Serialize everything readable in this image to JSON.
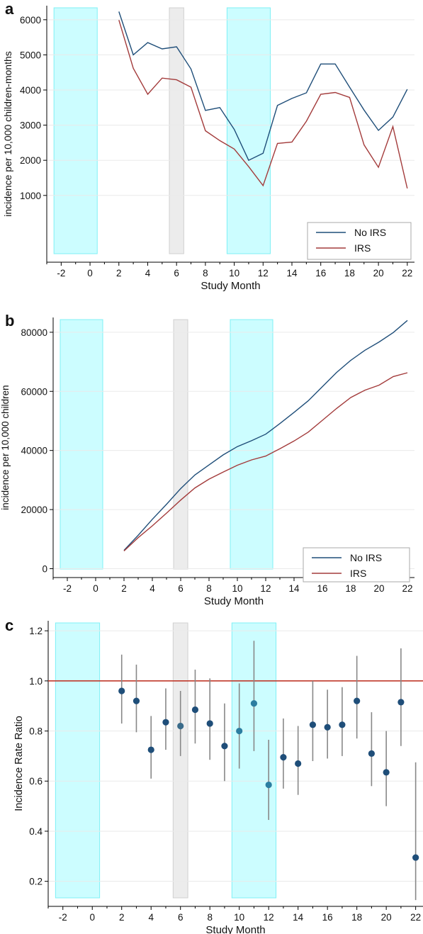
{
  "chart_data": [
    {
      "panel": "a",
      "type": "line",
      "xlabel": "Study Month",
      "ylabel": "incidence per 10,000 children-months",
      "xlim": [
        -3,
        22.5
      ],
      "ylim": [
        -900,
        6400
      ],
      "x_ticks": [
        -2,
        0,
        2,
        4,
        6,
        8,
        10,
        12,
        14,
        16,
        18,
        20,
        22
      ],
      "x_tick_labels": [
        "-2",
        "0",
        "2",
        "4",
        "6",
        "8",
        "10",
        "12",
        "14",
        "16",
        "18",
        "20",
        "22"
      ],
      "y_ticks": [
        1000,
        2000,
        3000,
        4000,
        5000,
        6000
      ],
      "y_tick_labels": [
        "1000",
        "2000",
        "3000",
        "4000",
        "5000",
        "6000"
      ],
      "shaded_periods": [
        {
          "from": -2.5,
          "to": 0.5,
          "color": "#ccfdff"
        },
        {
          "from": 5.5,
          "to": 6.5,
          "color": "#ececec"
        },
        {
          "from": 9.5,
          "to": 12.5,
          "color": "#ccfdff"
        }
      ],
      "legend": "bottom-right",
      "x": [
        2,
        3,
        4,
        5,
        6,
        7,
        8,
        9,
        10,
        11,
        12,
        13,
        14,
        15,
        16,
        17,
        18,
        19,
        20,
        21,
        22
      ],
      "series": [
        {
          "name": "No IRS",
          "color": "#1f4e79",
          "values": [
            6230,
            5000,
            5350,
            5170,
            5230,
            4600,
            3420,
            3500,
            2880,
            2000,
            2200,
            3560,
            3760,
            3920,
            4740,
            4740,
            4080,
            3430,
            2850,
            3230,
            4020
          ]
        },
        {
          "name": "IRS",
          "color": "#a33b3b",
          "values": [
            5990,
            4620,
            3880,
            4340,
            4290,
            4080,
            2840,
            2560,
            2320,
            1820,
            1280,
            2480,
            2520,
            3110,
            3880,
            3930,
            3790,
            2440,
            1800,
            2960,
            1200
          ]
        }
      ]
    },
    {
      "panel": "b",
      "type": "line",
      "xlabel": "Study Month",
      "ylabel": "incidence per 10,000 children",
      "xlim": [
        -3,
        22.5
      ],
      "ylim": [
        -3000,
        85000
      ],
      "x_ticks": [
        -2,
        0,
        2,
        4,
        6,
        8,
        10,
        12,
        14,
        16,
        18,
        20,
        22
      ],
      "x_tick_labels": [
        "-2",
        "0",
        "2",
        "4",
        "6",
        "8",
        "10",
        "12",
        "14",
        "16",
        "18",
        "20",
        "22"
      ],
      "y_ticks": [
        0,
        20000,
        40000,
        60000,
        80000
      ],
      "y_tick_labels": [
        "0",
        "20000",
        "40000",
        "60000",
        "80000"
      ],
      "shaded_periods": [
        {
          "from": -2.5,
          "to": 0.5,
          "color": "#ccfdff"
        },
        {
          "from": 5.5,
          "to": 6.5,
          "color": "#ececec"
        },
        {
          "from": 9.5,
          "to": 12.5,
          "color": "#ccfdff"
        }
      ],
      "legend": "bottom-right",
      "x": [
        2,
        3,
        4,
        5,
        6,
        7,
        8,
        9,
        10,
        11,
        12,
        13,
        14,
        15,
        16,
        17,
        18,
        19,
        20,
        21,
        22
      ],
      "series": [
        {
          "name": "No IRS",
          "color": "#1f4e79",
          "values": [
            6200,
            11300,
            16700,
            21800,
            27100,
            31700,
            35100,
            38500,
            41300,
            43300,
            45500,
            49100,
            52900,
            56800,
            61600,
            66400,
            70500,
            73900,
            76700,
            79900,
            84000
          ]
        },
        {
          "name": "IRS",
          "color": "#a33b3b",
          "values": [
            6000,
            10500,
            14500,
            18800,
            23200,
            27300,
            30300,
            32700,
            35000,
            36800,
            38100,
            40600,
            43200,
            46200,
            50200,
            54200,
            57900,
            60400,
            62100,
            65000,
            66300
          ]
        }
      ]
    },
    {
      "panel": "c",
      "type": "scatter",
      "xlabel": "Study Month",
      "ylabel": "Incidence Rate Ratio",
      "xlim": [
        -3,
        22.5
      ],
      "ylim": [
        0.1,
        1.24
      ],
      "x_ticks": [
        -2,
        0,
        2,
        4,
        6,
        8,
        10,
        12,
        14,
        16,
        18,
        20,
        22
      ],
      "x_tick_labels": [
        "-2",
        "0",
        "2",
        "4",
        "6",
        "8",
        "10",
        "12",
        "14",
        "16",
        "18",
        "20",
        "22"
      ],
      "y_ticks": [
        0.2,
        0.4,
        0.6,
        0.8,
        1.0,
        1.2
      ],
      "y_tick_labels": [
        "0.2",
        "0.4",
        "0.6",
        "0.8",
        "1.0",
        "1.2"
      ],
      "reference_line": {
        "y": 1.0,
        "color": "#c0392b"
      },
      "shaded_periods": [
        {
          "from": -2.5,
          "to": 0.5,
          "color": "#ccfdff"
        },
        {
          "from": 5.5,
          "to": 6.5,
          "color": "#ececec"
        },
        {
          "from": 9.5,
          "to": 12.5,
          "color": "#ccfdff"
        }
      ],
      "x": [
        2,
        3,
        4,
        5,
        6,
        7,
        8,
        9,
        10,
        11,
        12,
        13,
        14,
        15,
        16,
        17,
        18,
        19,
        20,
        21,
        22
      ],
      "estimate": [
        0.96,
        0.92,
        0.725,
        0.835,
        0.82,
        0.885,
        0.83,
        0.74,
        0.8,
        0.91,
        0.585,
        0.695,
        0.67,
        0.825,
        0.815,
        0.825,
        0.92,
        0.71,
        0.635,
        0.915,
        0.295
      ],
      "lower": [
        0.83,
        0.795,
        0.61,
        0.725,
        0.7,
        0.75,
        0.685,
        0.6,
        0.65,
        0.72,
        0.445,
        0.57,
        0.545,
        0.68,
        0.69,
        0.7,
        0.77,
        0.58,
        0.5,
        0.74,
        0.125
      ],
      "upper": [
        1.105,
        1.065,
        0.86,
        0.97,
        0.96,
        1.045,
        1.01,
        0.91,
        0.99,
        1.16,
        0.765,
        0.85,
        0.82,
        1.0,
        0.965,
        0.975,
        1.1,
        0.875,
        0.8,
        1.13,
        0.675
      ],
      "point_color": "#1f4e79",
      "point_color_shaded": "#2c7ea1",
      "errorbar_color": "#888888"
    }
  ],
  "panels": {
    "a": {
      "letter": "a"
    },
    "b": {
      "letter": "b"
    },
    "c": {
      "letter": "c"
    }
  }
}
